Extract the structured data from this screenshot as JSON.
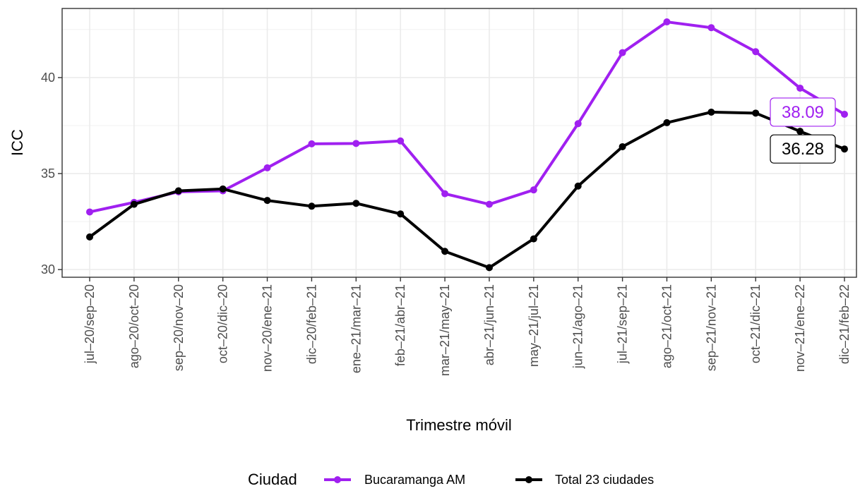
{
  "chart_data": {
    "type": "line",
    "xlabel": "Trimestre móvil",
    "ylabel": "ICC",
    "ylim": [
      29.6,
      43.6
    ],
    "yticks": [
      30,
      35,
      40
    ],
    "grid": true,
    "legend_position": "bottom",
    "legend_title": "Ciudad",
    "categories": [
      "jul–20/sep–20",
      "ago–20/oct–20",
      "sep–20/nov–20",
      "oct–20/dic–20",
      "nov–20/ene–21",
      "dic–20/feb–21",
      "ene–21/mar–21",
      "feb–21/abr–21",
      "mar–21/may–21",
      "abr–21/jun–21",
      "may–21/jul–21",
      "jun–21/ago–21",
      "jul–21/sep–21",
      "ago–21/oct–21",
      "sep–21/nov–21",
      "oct–21/dic–21",
      "nov–21/ene–22",
      "dic–21/feb–22"
    ],
    "series": [
      {
        "name": "Bucaramanga AM",
        "color": "#a020f0",
        "values": [
          33.0,
          33.5,
          34.05,
          34.1,
          35.3,
          36.55,
          36.57,
          36.7,
          33.95,
          33.4,
          34.15,
          37.6,
          41.3,
          42.9,
          42.6,
          41.35,
          39.45,
          38.09
        ],
        "end_label": "38.09"
      },
      {
        "name": "Total 23 ciudades",
        "color": "#000000",
        "values": [
          31.7,
          33.4,
          34.1,
          34.2,
          33.6,
          33.3,
          33.45,
          32.9,
          30.95,
          30.1,
          31.6,
          34.35,
          36.4,
          37.65,
          38.2,
          38.15,
          37.2,
          36.28
        ],
        "end_label": "36.28"
      }
    ]
  }
}
